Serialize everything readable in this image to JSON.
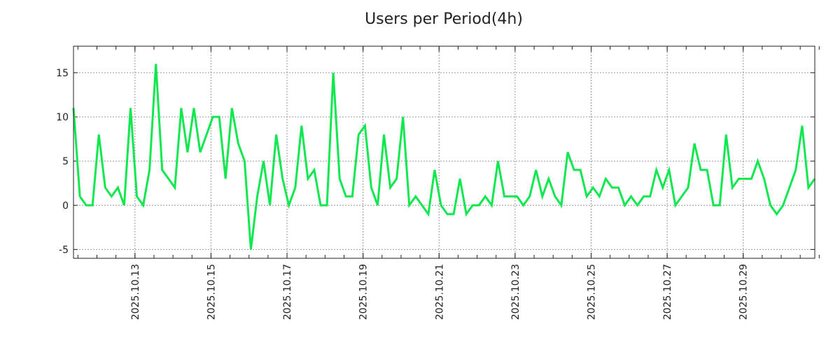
{
  "chart_data": {
    "type": "line",
    "title": "Users per Period(4h)",
    "xlabel": "",
    "ylabel": "",
    "ylim": [
      -6,
      18
    ],
    "yticks": [
      -5,
      0,
      5,
      10,
      15
    ],
    "grid": true,
    "line_color": "#11e84f",
    "x_step": "4h",
    "xticks": [
      {
        "label": "2025.10.13",
        "index": 9.7
      },
      {
        "label": "2025.10.15",
        "index": 21.7
      },
      {
        "label": "2025.10.17",
        "index": 33.7
      },
      {
        "label": "2025.10.19",
        "index": 45.7
      },
      {
        "label": "2025.10.21",
        "index": 57.7
      },
      {
        "label": "2025.10.23",
        "index": 69.7
      },
      {
        "label": "2025.10.25",
        "index": 81.7
      },
      {
        "label": "2025.10.27",
        "index": 93.7
      },
      {
        "label": "2025.10.29",
        "index": 105.7
      }
    ],
    "values": [
      11,
      1,
      0,
      0,
      8,
      2,
      1,
      2,
      0,
      11,
      1,
      0,
      4,
      16,
      4,
      3,
      2,
      11,
      6,
      11,
      6,
      8,
      10,
      10,
      3,
      11,
      7,
      5,
      -5,
      1,
      5,
      0,
      8,
      3,
      0,
      2,
      9,
      3,
      4,
      0,
      0,
      15,
      3,
      1,
      1,
      8,
      9,
      2,
      0,
      8,
      2,
      3,
      10,
      0,
      1,
      0,
      -1,
      4,
      0,
      -1,
      -1,
      3,
      -1,
      0,
      0,
      1,
      0,
      5,
      1,
      1,
      1,
      0,
      1,
      4,
      1,
      3,
      1,
      0,
      6,
      4,
      4,
      1,
      2,
      1,
      3,
      2,
      2,
      0,
      1,
      0,
      1,
      1,
      4,
      2,
      4,
      0,
      1,
      2,
      7,
      4,
      4,
      0,
      0,
      8,
      2,
      3,
      3,
      3,
      5,
      3,
      0,
      -1,
      0,
      2,
      4,
      9,
      2,
      3
    ]
  }
}
